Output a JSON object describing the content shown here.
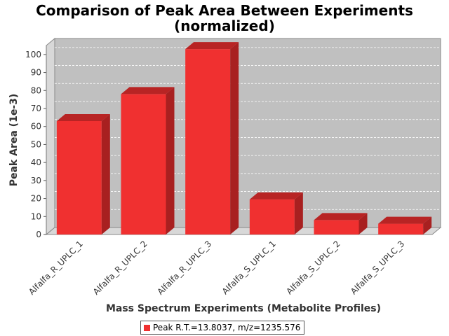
{
  "chart_data": {
    "type": "bar",
    "title_line1": "Comparison of Peak Area Between Experiments",
    "title_line2": "(normalized)",
    "xlabel": "Mass Spectrum Experiments (Metabolite Profiles)",
    "ylabel": "Peak Area (1e-3)",
    "categories": [
      "Alfalfa_R_UPLC_1",
      "Alfalfa_R_UPLC_2",
      "Alfalfa_R_UPLC_3",
      "Alfalfa_S_UPLC_1",
      "Alfalfa_S_UPLC_2",
      "Alfalfa_S_UPLC_3"
    ],
    "series": [
      {
        "name": "Peak R.T.=13.8037, m/z=1235.576",
        "values": [
          63,
          78,
          103,
          19.5,
          8,
          6
        ]
      }
    ],
    "ylim": [
      0,
      105
    ],
    "yticks": [
      0,
      10,
      20,
      30,
      40,
      50,
      60,
      70,
      80,
      90,
      100
    ],
    "grid": true,
    "legend_position": "bottom",
    "colors": {
      "bar_face": "#f03030",
      "bar_top": "#b82424",
      "bar_side": "#a82020",
      "plot_background": "#c0c0c0",
      "gridline": "#ffffff"
    }
  }
}
